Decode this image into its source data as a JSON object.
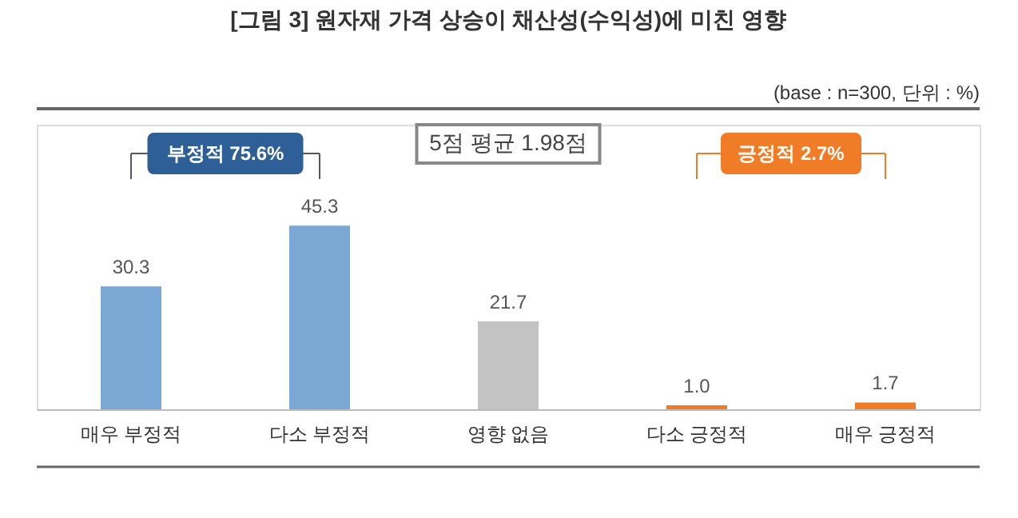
{
  "chart_data": {
    "type": "bar",
    "title": "[그림 3] 원자재 가격 상승이 채산성(수익성)에 미친 영향",
    "subtitle": "(base : n=300, 단위 : %)",
    "categories": [
      "매우 부정적",
      "다소 부정적",
      "영향 없음",
      "다소 긍정적",
      "매우 긍정적"
    ],
    "values": [
      30.3,
      45.3,
      21.7,
      1.0,
      1.7
    ],
    "colors": [
      "#7ba7d4",
      "#7ba7d4",
      "#c3c3c3",
      "#f07c27",
      "#f07c27"
    ],
    "value_labels": [
      "30.3",
      "45.3",
      "21.7",
      "1.0",
      "1.7"
    ],
    "annotations": [
      "부정적 75.6%",
      "5점 평균 1.98점",
      "긍정적 2.7%"
    ]
  }
}
